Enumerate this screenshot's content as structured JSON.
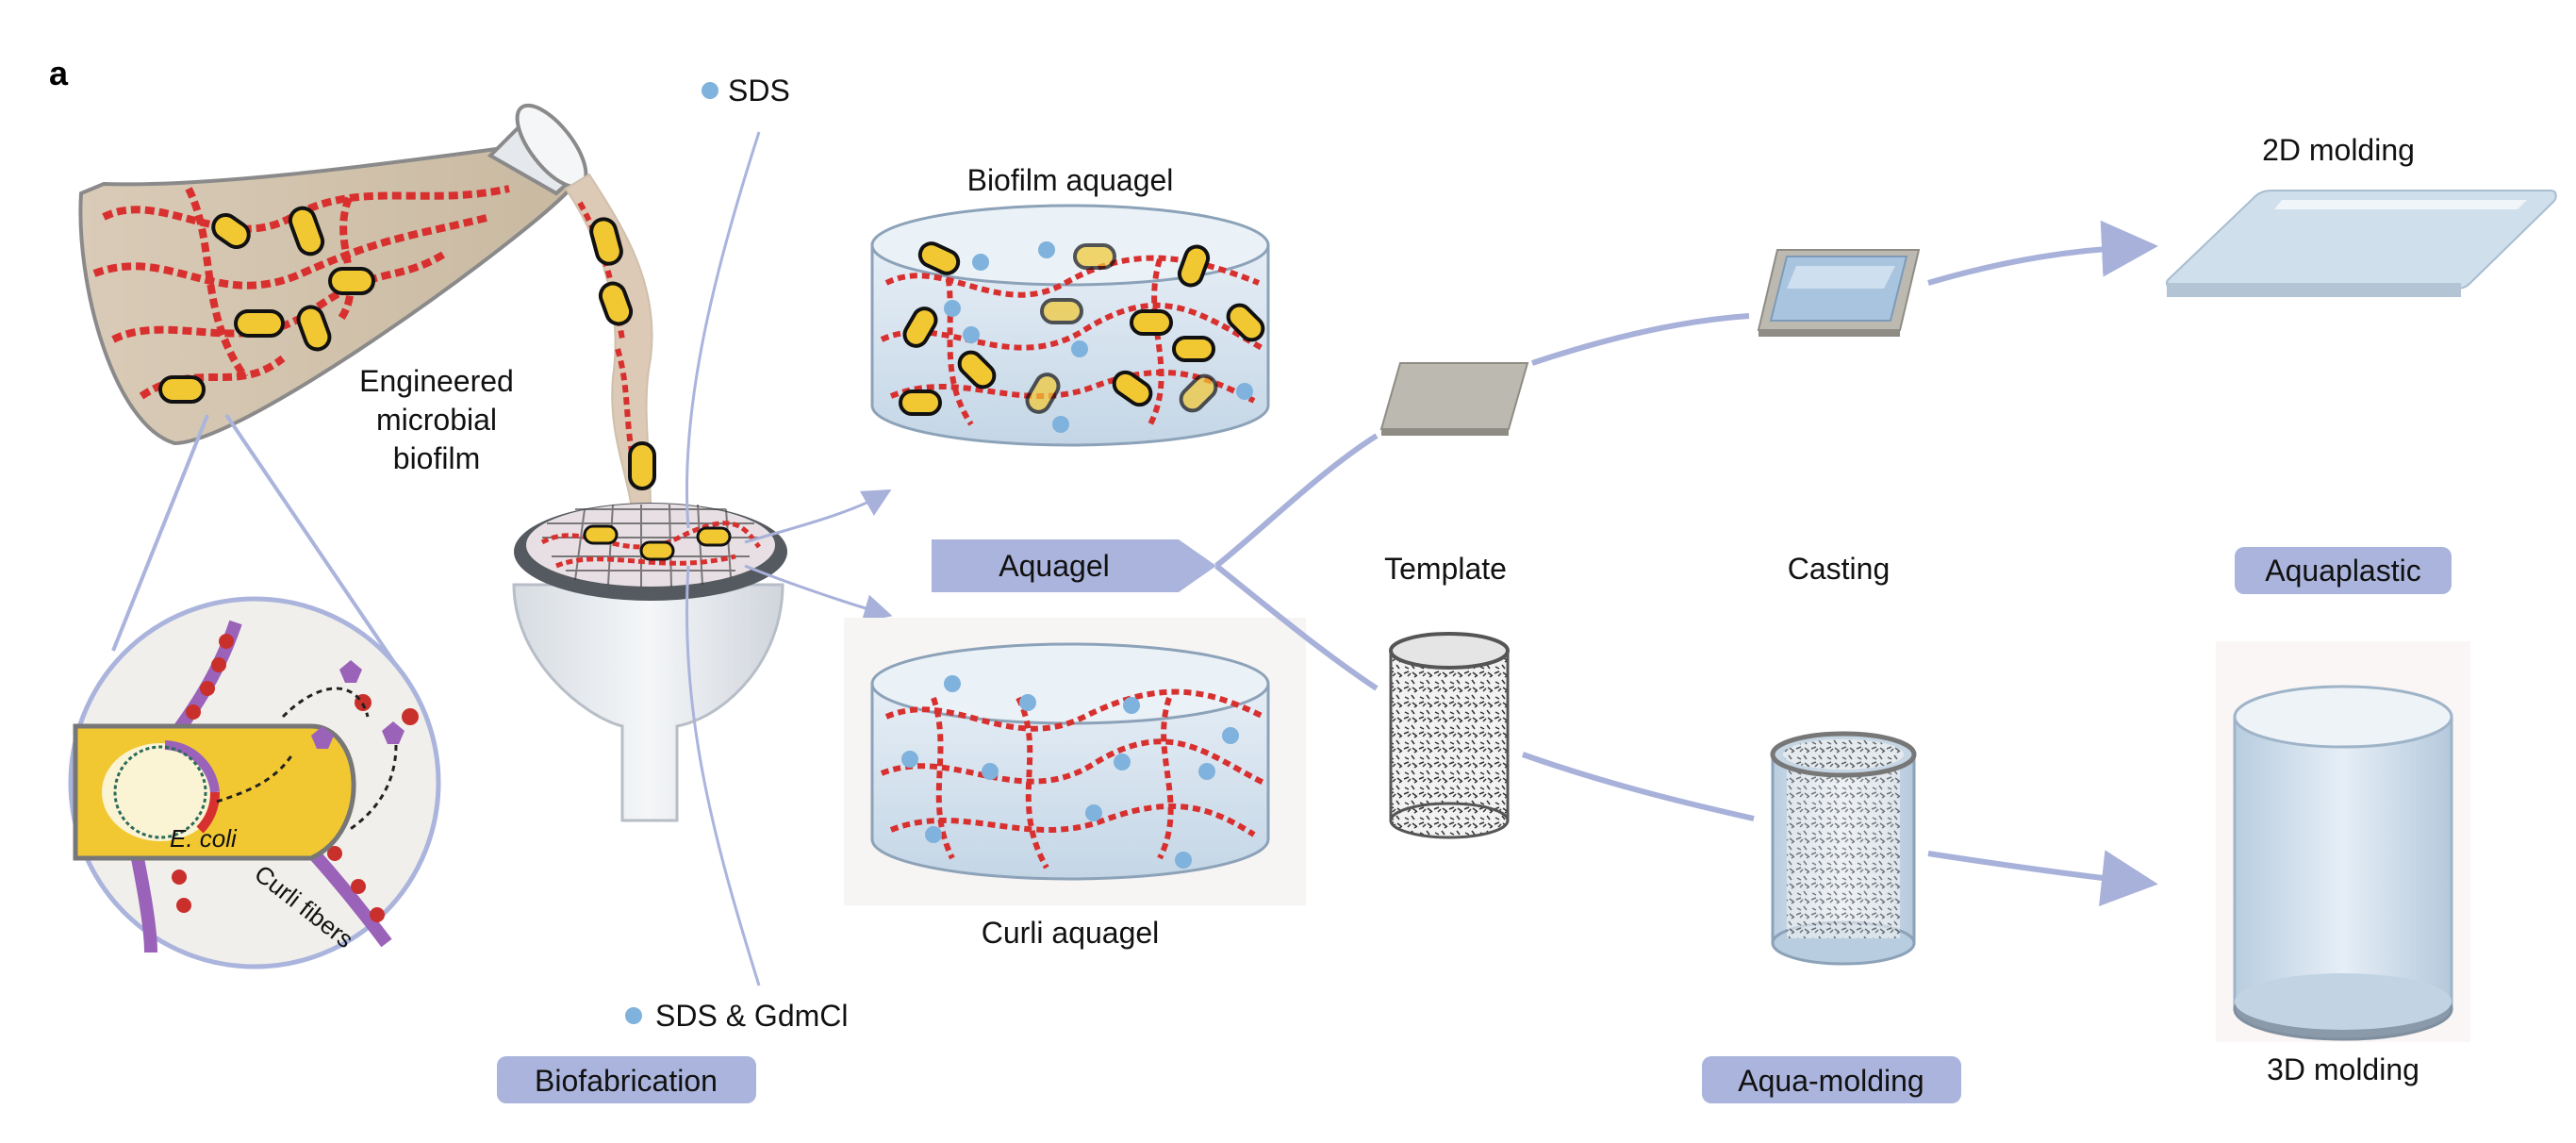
{
  "panel_letter": "a",
  "labels": {
    "sds": "SDS",
    "sds_gdmcl": "SDS & GdmCl",
    "engineered_line1": "Engineered",
    "engineered_line2": "microbial",
    "engineered_line3": "biofilm",
    "biofilm_aquagel": "Biofilm aquagel",
    "curli_aquagel": "Curli aquagel",
    "template": "Template",
    "casting": "Casting",
    "molding_2d": "2D molding",
    "molding_3d": "3D molding",
    "ecoli": "E. coli",
    "curli_fibers": "Curli fibers"
  },
  "pills": {
    "aquagel": "Aquagel",
    "biofabrication": "Biofabrication",
    "aqua_molding": "Aqua-molding",
    "aquaplastic": "Aquaplastic"
  },
  "colors": {
    "accent_lavender": "#aab4dc",
    "arrow": "#a7b1d9",
    "curli_red": "#d8302f",
    "cell_yellow": "#f2c832",
    "sds_blue": "#7fb2dc",
    "gel_blue": "#cfdfec",
    "purple": "#9a62b8"
  }
}
